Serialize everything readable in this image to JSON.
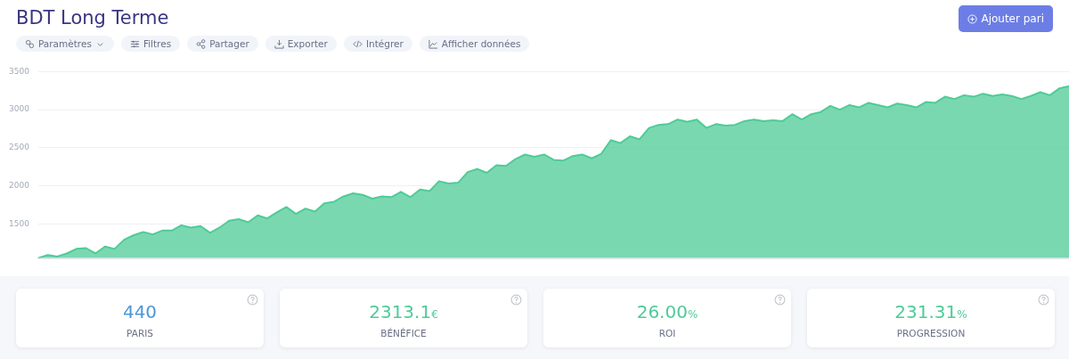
{
  "chart_data": [
    {
      "type": "area",
      "title": "BDT Long Terme",
      "annotations": [
        "Paramètres",
        "Filtres",
        "Partager",
        "Exporter",
        "Intégrer",
        "Afficher données",
        "Ajouter pari"
      ],
      "categories": [
        null,
        null,
        null,
        null,
        null,
        null,
        null,
        null,
        null,
        null,
        null,
        null,
        null,
        null,
        null,
        null,
        null,
        null,
        null,
        null,
        null,
        null,
        null,
        null,
        null,
        null,
        null,
        null,
        null,
        null,
        null,
        null,
        null,
        null,
        null,
        null,
        null,
        null,
        null,
        null,
        null,
        null,
        null,
        null,
        null,
        null,
        null,
        null,
        null,
        null,
        null,
        null,
        null,
        null,
        null,
        null,
        null,
        null,
        null,
        null,
        null,
        null,
        null,
        null,
        null,
        null,
        null,
        null,
        null,
        null,
        null,
        null,
        null,
        null,
        null,
        null,
        null,
        null,
        null,
        null,
        null,
        null,
        null,
        null,
        null,
        null,
        null,
        null,
        null,
        null,
        null,
        null,
        null,
        null,
        null,
        null,
        null,
        null,
        null,
        null,
        null,
        null,
        null,
        null,
        null,
        null,
        null,
        null,
        null
      ],
      "series": [
        {
          "color": "#4fcb97",
          "values": [
            1050,
            1090,
            1070,
            1110,
            1170,
            1180,
            1110,
            1200,
            1170,
            1290,
            1350,
            1390,
            1360,
            1410,
            1410,
            1480,
            1450,
            1470,
            1380,
            1450,
            1540,
            1560,
            1520,
            1610,
            1570,
            1650,
            1720,
            1630,
            1700,
            1660,
            1770,
            1790,
            1860,
            1900,
            1880,
            1830,
            1860,
            1850,
            1920,
            1850,
            1950,
            1930,
            2060,
            2030,
            2040,
            2180,
            2220,
            2170,
            2270,
            2260,
            2350,
            2410,
            2380,
            2410,
            2340,
            2330,
            2390,
            2410,
            2360,
            2420,
            2600,
            2560,
            2650,
            2610,
            2760,
            2800,
            2810,
            2870,
            2840,
            2870,
            2760,
            2810,
            2790,
            2800,
            2850,
            2870,
            2850,
            2860,
            2850,
            2940,
            2870,
            2940,
            2970,
            3050,
            3000,
            3060,
            3030,
            3090,
            3060,
            3030,
            3080,
            3060,
            3030,
            3100,
            3090,
            3170,
            3140,
            3190,
            3170,
            3210,
            3180,
            3200,
            3180,
            3140,
            3180,
            3230,
            3190,
            3280,
            3310
          ]
        }
      ],
      "ylim": [
        1050,
        3500
      ],
      "yticks": [
        1500,
        2000,
        2500,
        3000,
        3500
      ],
      "grid": "y",
      "tick_labels": "y",
      "legend": false
    },
    {
      "type": "other",
      "categories": [
        "PARIS",
        "BÉNÉFICE",
        "ROI",
        "PROGRESSION"
      ],
      "value_labels": [
        "440",
        "2313.1€",
        "26.00%",
        "231.31%"
      ]
    }
  ]
}
